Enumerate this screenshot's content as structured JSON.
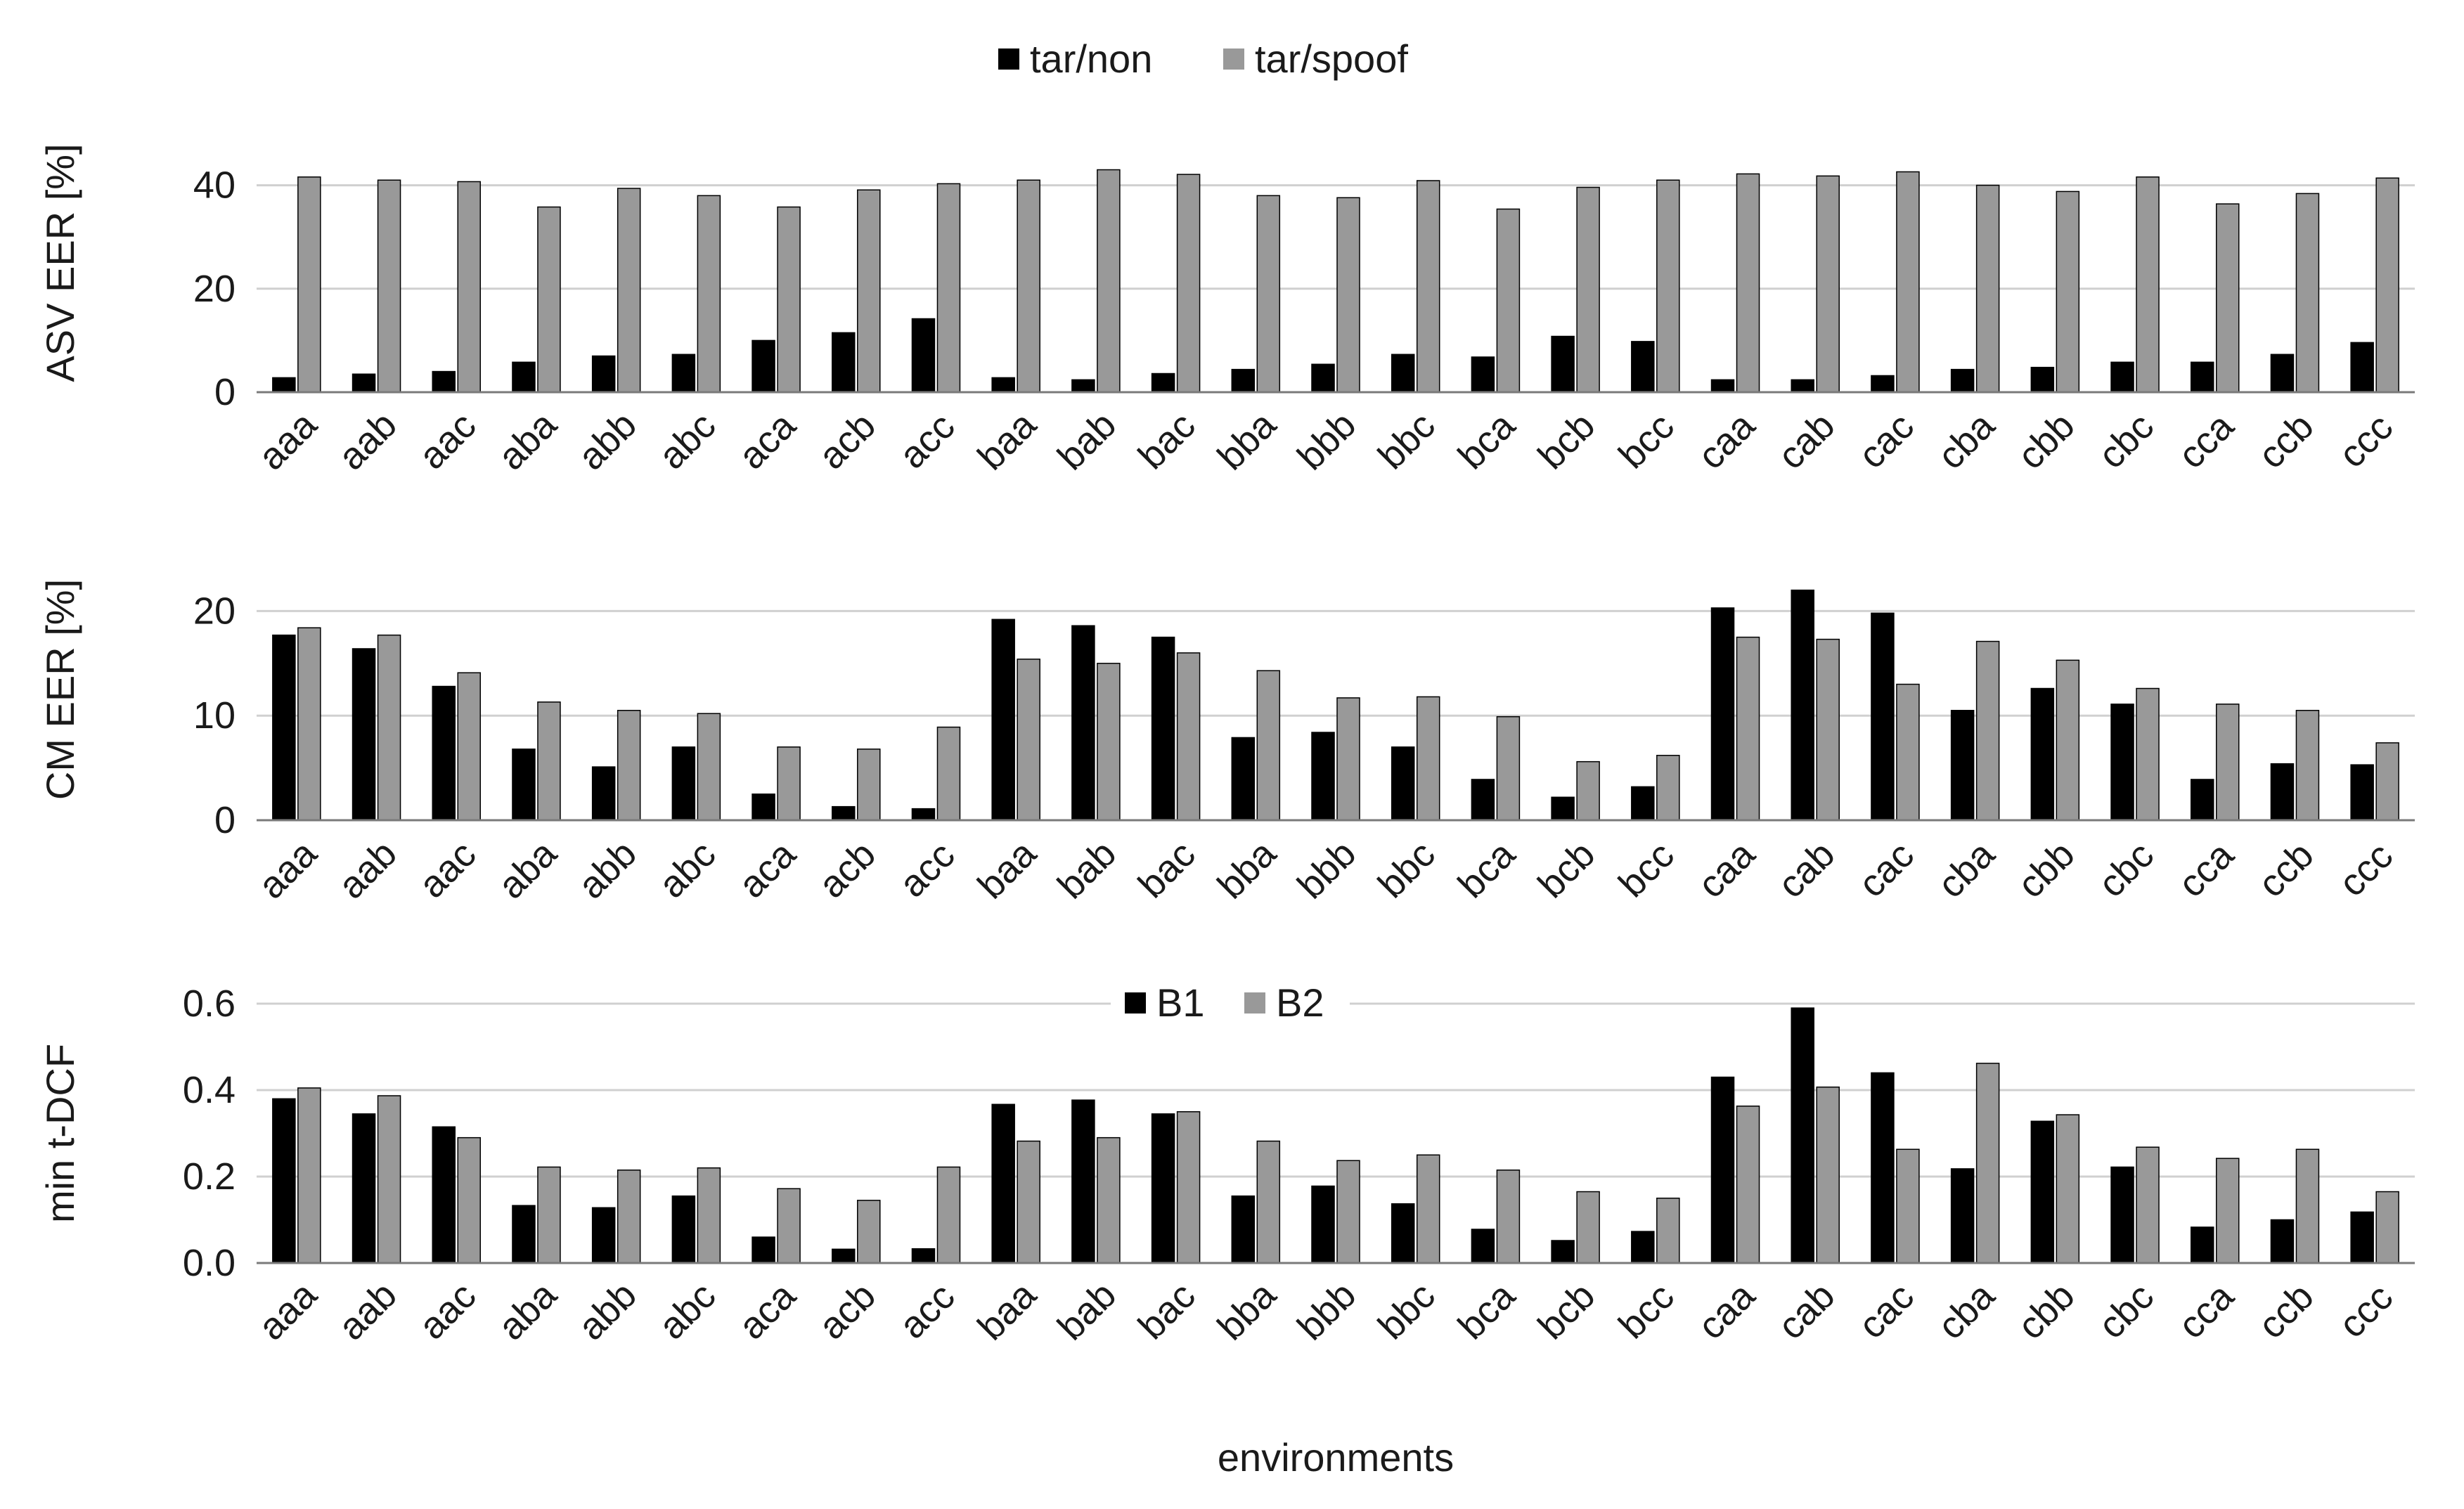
{
  "chart_data": [
    {
      "type": "bar",
      "ylabel": "ASV EER [%]",
      "xlabel": "",
      "ylim": [
        0,
        50
      ],
      "yticks": [
        0,
        20,
        40
      ],
      "grid": true,
      "legend": {
        "position": "top-center",
        "entries": [
          "tar/non",
          "tar/spoof"
        ]
      },
      "categories": [
        "aaa",
        "aab",
        "aac",
        "aba",
        "abb",
        "abc",
        "aca",
        "acb",
        "acc",
        "baa",
        "bab",
        "bac",
        "bba",
        "bbb",
        "bbc",
        "bca",
        "bcb",
        "bcc",
        "caa",
        "cab",
        "cac",
        "cba",
        "cbb",
        "cbc",
        "cca",
        "ccb",
        "ccc"
      ],
      "series": [
        {
          "name": "tar/non",
          "color": "#000000",
          "values": [
            2.8,
            3.5,
            4.0,
            5.8,
            7.0,
            7.3,
            10.0,
            11.5,
            14.2,
            2.8,
            2.4,
            3.6,
            4.4,
            5.4,
            7.3,
            6.8,
            10.8,
            9.8,
            2.4,
            2.4,
            3.2,
            4.4,
            4.8,
            5.8,
            5.8,
            7.3,
            9.6
          ]
        },
        {
          "name": "tar/spoof",
          "color": "#999999",
          "values": [
            41.6,
            41.0,
            40.7,
            35.8,
            39.4,
            38.0,
            35.8,
            39.1,
            40.3,
            41.0,
            43.0,
            42.1,
            38.0,
            37.6,
            40.9,
            35.4,
            39.6,
            41.0,
            42.2,
            41.8,
            42.6,
            40.0,
            38.8,
            41.6,
            36.4,
            38.4,
            41.4
          ]
        }
      ]
    },
    {
      "type": "bar",
      "ylabel": "CM EER [%]",
      "xlabel": "",
      "ylim": [
        0,
        25
      ],
      "yticks": [
        0,
        10,
        20
      ],
      "grid": true,
      "legend": null,
      "categories": [
        "aaa",
        "aab",
        "aac",
        "aba",
        "abb",
        "abc",
        "aca",
        "acb",
        "acc",
        "baa",
        "bab",
        "bac",
        "bba",
        "bbb",
        "bbc",
        "bca",
        "bcb",
        "bcc",
        "caa",
        "cab",
        "cac",
        "cba",
        "cbb",
        "cbc",
        "cca",
        "ccb",
        "ccc"
      ],
      "series": [
        {
          "name": "",
          "color": "#000000",
          "values": [
            17.7,
            16.4,
            12.8,
            6.8,
            5.1,
            7.0,
            2.5,
            1.3,
            1.1,
            19.2,
            18.6,
            17.5,
            7.9,
            8.4,
            7.0,
            3.9,
            2.2,
            3.2,
            20.3,
            22.0,
            19.8,
            10.5,
            12.6,
            11.1,
            3.9,
            5.4,
            5.3
          ]
        },
        {
          "name": "",
          "color": "#999999",
          "values": [
            18.4,
            17.7,
            14.1,
            11.3,
            10.5,
            10.2,
            7.0,
            6.8,
            8.9,
            15.4,
            15.0,
            16.0,
            14.3,
            11.7,
            11.8,
            9.9,
            5.6,
            6.2,
            17.5,
            17.3,
            13.0,
            17.1,
            15.3,
            12.6,
            11.1,
            10.5,
            7.4
          ]
        }
      ]
    },
    {
      "type": "bar",
      "ylabel": "min t-DCF",
      "xlabel": "environments",
      "ylim": [
        0,
        0.6
      ],
      "yticks": [
        "0.0",
        "0.2",
        "0.4",
        "0.6"
      ],
      "grid": true,
      "legend": {
        "position": "top-center",
        "entries": [
          "B1",
          "B2"
        ]
      },
      "categories": [
        "aaa",
        "aab",
        "aac",
        "aba",
        "abb",
        "abc",
        "aca",
        "acb",
        "acc",
        "baa",
        "bab",
        "bac",
        "bba",
        "bbb",
        "bbc",
        "bca",
        "bcb",
        "bcc",
        "caa",
        "cab",
        "cac",
        "cba",
        "cbb",
        "cbc",
        "cca",
        "ccb",
        "ccc"
      ],
      "series": [
        {
          "name": "B1",
          "color": "#000000",
          "values": [
            0.38,
            0.345,
            0.315,
            0.133,
            0.128,
            0.155,
            0.06,
            0.032,
            0.033,
            0.367,
            0.377,
            0.345,
            0.155,
            0.178,
            0.137,
            0.078,
            0.052,
            0.073,
            0.43,
            0.59,
            0.44,
            0.218,
            0.328,
            0.222,
            0.083,
            0.1,
            0.118
          ]
        },
        {
          "name": "B2",
          "color": "#999999",
          "values": [
            0.405,
            0.387,
            0.29,
            0.222,
            0.215,
            0.22,
            0.172,
            0.145,
            0.222,
            0.282,
            0.29,
            0.35,
            0.282,
            0.237,
            0.25,
            0.215,
            0.165,
            0.15,
            0.363,
            0.407,
            0.263,
            0.462,
            0.343,
            0.268,
            0.242,
            0.263,
            0.165
          ]
        }
      ]
    }
  ]
}
